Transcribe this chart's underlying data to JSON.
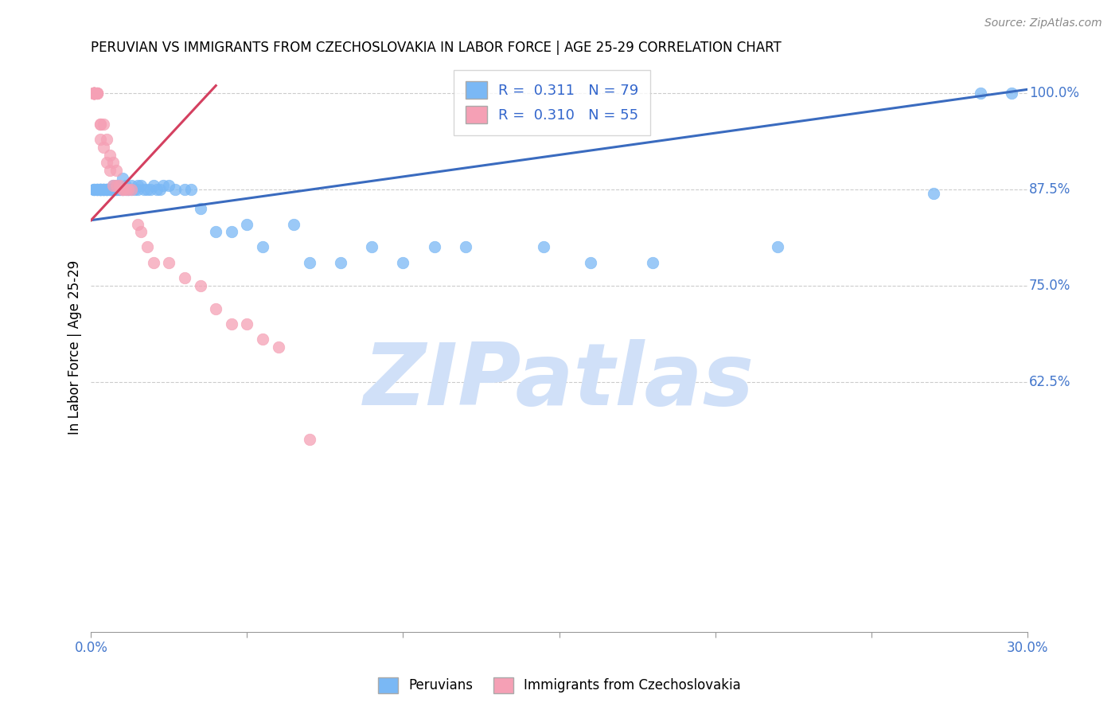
{
  "title": "PERUVIAN VS IMMIGRANTS FROM CZECHOSLOVAKIA IN LABOR FORCE | AGE 25-29 CORRELATION CHART",
  "source": "Source: ZipAtlas.com",
  "ylabel": "In Labor Force | Age 25-29",
  "xlim": [
    0.0,
    0.3
  ],
  "ylim": [
    0.3,
    1.04
  ],
  "ytick_positions": [
    0.625,
    0.75,
    0.875,
    1.0
  ],
  "ytick_labels": [
    "62.5%",
    "75.0%",
    "87.5%",
    "100.0%"
  ],
  "blue_R": "0.311",
  "blue_N": "79",
  "pink_R": "0.310",
  "pink_N": "55",
  "blue_color": "#7ab8f5",
  "pink_color": "#f5a0b5",
  "blue_line_color": "#3a6bbf",
  "pink_line_color": "#d44060",
  "grid_color": "#cccccc",
  "watermark": "ZIPatlas",
  "watermark_color": "#d0e0f8",
  "blue_trend_x": [
    0.0,
    0.3
  ],
  "blue_trend_y": [
    0.835,
    1.005
  ],
  "pink_trend_x": [
    0.0,
    0.04
  ],
  "pink_trend_y": [
    0.835,
    1.01
  ],
  "blue_x": [
    0.001,
    0.001,
    0.001,
    0.002,
    0.002,
    0.002,
    0.002,
    0.003,
    0.003,
    0.003,
    0.003,
    0.003,
    0.003,
    0.004,
    0.004,
    0.004,
    0.004,
    0.004,
    0.005,
    0.005,
    0.005,
    0.005,
    0.005,
    0.006,
    0.006,
    0.006,
    0.006,
    0.007,
    0.007,
    0.007,
    0.008,
    0.008,
    0.008,
    0.008,
    0.009,
    0.009,
    0.01,
    0.01,
    0.01,
    0.011,
    0.011,
    0.012,
    0.012,
    0.013,
    0.013,
    0.014,
    0.015,
    0.015,
    0.016,
    0.017,
    0.018,
    0.019,
    0.02,
    0.021,
    0.022,
    0.023,
    0.025,
    0.027,
    0.03,
    0.032,
    0.035,
    0.04,
    0.045,
    0.05,
    0.055,
    0.065,
    0.07,
    0.08,
    0.09,
    0.1,
    0.11,
    0.12,
    0.145,
    0.16,
    0.18,
    0.22,
    0.27,
    0.285,
    0.295
  ],
  "blue_y": [
    0.875,
    0.875,
    0.875,
    0.875,
    0.875,
    0.875,
    0.875,
    0.875,
    0.875,
    0.875,
    0.875,
    0.875,
    0.875,
    0.875,
    0.875,
    0.875,
    0.875,
    0.875,
    0.875,
    0.875,
    0.875,
    0.875,
    0.875,
    0.875,
    0.875,
    0.875,
    0.875,
    0.88,
    0.875,
    0.875,
    0.875,
    0.875,
    0.88,
    0.875,
    0.875,
    0.875,
    0.89,
    0.875,
    0.875,
    0.88,
    0.875,
    0.875,
    0.875,
    0.88,
    0.875,
    0.875,
    0.88,
    0.875,
    0.88,
    0.875,
    0.875,
    0.875,
    0.88,
    0.875,
    0.875,
    0.88,
    0.88,
    0.875,
    0.875,
    0.875,
    0.85,
    0.82,
    0.82,
    0.83,
    0.8,
    0.83,
    0.78,
    0.78,
    0.8,
    0.78,
    0.8,
    0.8,
    0.8,
    0.78,
    0.78,
    0.8,
    0.87,
    1.0,
    1.0
  ],
  "pink_x": [
    0.001,
    0.001,
    0.001,
    0.001,
    0.001,
    0.001,
    0.001,
    0.001,
    0.001,
    0.001,
    0.001,
    0.001,
    0.001,
    0.001,
    0.001,
    0.001,
    0.001,
    0.001,
    0.001,
    0.002,
    0.002,
    0.002,
    0.002,
    0.003,
    0.003,
    0.003,
    0.004,
    0.004,
    0.005,
    0.005,
    0.006,
    0.006,
    0.007,
    0.007,
    0.008,
    0.008,
    0.009,
    0.01,
    0.01,
    0.011,
    0.012,
    0.013,
    0.015,
    0.016,
    0.018,
    0.02,
    0.025,
    0.03,
    0.035,
    0.04,
    0.045,
    0.05,
    0.055,
    0.06,
    0.07
  ],
  "pink_y": [
    1.0,
    1.0,
    1.0,
    1.0,
    1.0,
    1.0,
    1.0,
    1.0,
    1.0,
    1.0,
    1.0,
    1.0,
    1.0,
    1.0,
    1.0,
    1.0,
    1.0,
    1.0,
    1.0,
    1.0,
    1.0,
    1.0,
    1.0,
    0.96,
    0.96,
    0.94,
    0.96,
    0.93,
    0.94,
    0.91,
    0.92,
    0.9,
    0.91,
    0.88,
    0.9,
    0.88,
    0.88,
    0.875,
    0.875,
    0.875,
    0.875,
    0.875,
    0.83,
    0.82,
    0.8,
    0.78,
    0.78,
    0.76,
    0.75,
    0.72,
    0.7,
    0.7,
    0.68,
    0.67,
    0.55
  ]
}
